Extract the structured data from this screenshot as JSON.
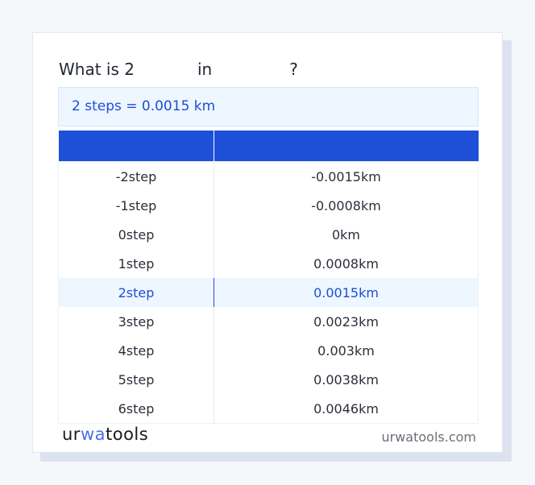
{
  "title": {
    "prefix": "What is 2",
    "mid": "in",
    "suffix": "?"
  },
  "result": "2 steps = 0.0015 km",
  "table": {
    "headers": [
      "",
      ""
    ],
    "rows": [
      [
        "-2step",
        "-0.0015km"
      ],
      [
        "-1step",
        "-0.0008km"
      ],
      [
        "0step",
        "0km"
      ],
      [
        "1step",
        "0.0008km"
      ],
      [
        "2step",
        "0.0015km"
      ],
      [
        "3step",
        "0.0023km"
      ],
      [
        "4step",
        "0.003km"
      ],
      [
        "5step",
        "0.0038km"
      ],
      [
        "6step",
        "0.0046km"
      ]
    ],
    "highlight_index": 4
  },
  "footer": {
    "logo": "urwatools",
    "logo_parts": [
      "ur",
      "wa",
      "tools"
    ],
    "site": "urwatools.com"
  },
  "colors": {
    "accent": "#1d4fd8",
    "highlight_bg": "#eef6ff"
  }
}
